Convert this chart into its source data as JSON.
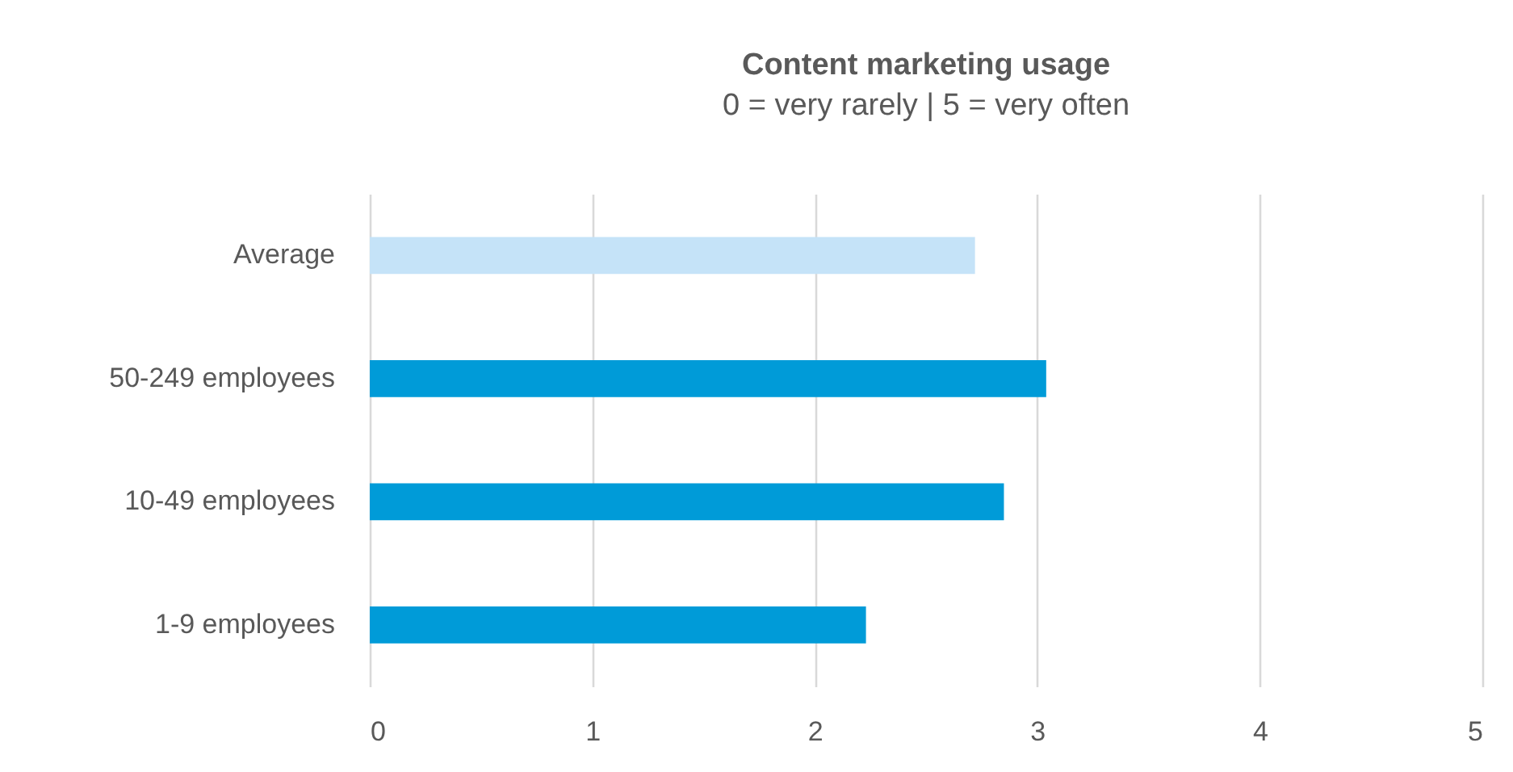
{
  "chart_data": {
    "type": "bar",
    "orientation": "horizontal",
    "title": "Content marketing usage",
    "subtitle": "0 = very rarely | 5 = very often",
    "categories": [
      "Average",
      "50-249 employees",
      "10-49 employees",
      "1-9 employees"
    ],
    "values": [
      2.72,
      3.04,
      2.85,
      2.23
    ],
    "colors": [
      "#c5e3f8",
      "#009bd8",
      "#009bd8",
      "#009bd8"
    ],
    "xlim": [
      0,
      5
    ],
    "xticks": [
      0,
      1,
      2,
      3,
      4,
      5
    ],
    "grid": "x"
  }
}
